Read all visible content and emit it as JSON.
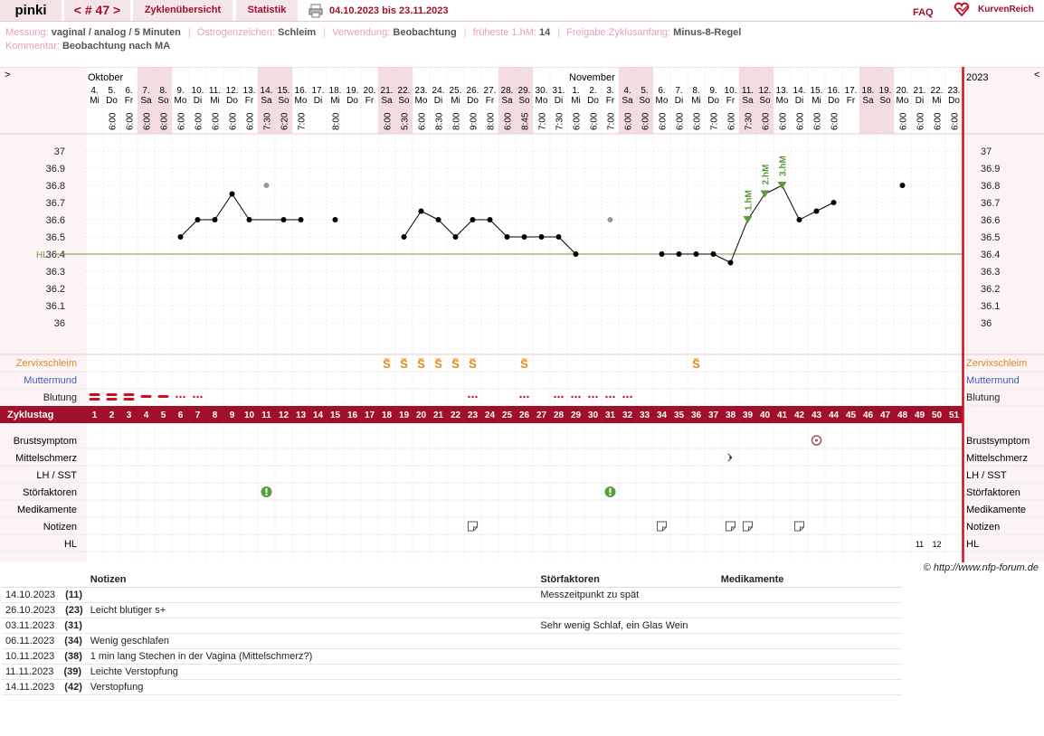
{
  "header": {
    "user": "pinki",
    "cycle_nav": "< # 47 >",
    "tab_overview": "Zyklenübersicht",
    "tab_stats": "Statistik",
    "print_icon": "printer-icon",
    "date_range": "04.10.2023 bis 23.11.2023",
    "faq": "FAQ",
    "logo_text": "KurvenReich"
  },
  "info": {
    "messung_label": "Messung:",
    "messung": "vaginal / analog / 5 Minuten",
    "oestrogen_label": "Östrogenzeichen:",
    "oestrogen": "Schleim",
    "verwendung_label": "Verwendung:",
    "verwendung": "Beobachtung",
    "frueh_label": "früheste 1.hM:",
    "frueh": "14",
    "freigabe_label": "Freigabe Zyklusanfang:",
    "freigabe": "Minus-8-Regel",
    "kommentar_label": "Kommentar:",
    "kommentar": "Beobachtung nach MA"
  },
  "chart_data": {
    "type": "line",
    "corner_left": ">",
    "corner_right": "<",
    "year": "2023",
    "months": [
      {
        "label": "Oktober",
        "day": 1
      },
      {
        "label": "November",
        "day": 29
      }
    ],
    "days": [
      "4.",
      "5.",
      "6.",
      "7.",
      "8.",
      "9.",
      "10.",
      "11.",
      "12.",
      "13.",
      "14.",
      "15.",
      "16.",
      "17.",
      "18.",
      "19.",
      "20.",
      "21.",
      "22.",
      "23.",
      "24.",
      "25.",
      "26.",
      "27.",
      "28.",
      "29.",
      "30.",
      "31.",
      "1.",
      "2.",
      "3.",
      "4.",
      "5.",
      "6.",
      "7.",
      "8.",
      "9.",
      "10.",
      "11.",
      "12.",
      "13.",
      "14.",
      "15.",
      "16.",
      "17.",
      "18.",
      "19.",
      "20.",
      "21.",
      "22.",
      "23."
    ],
    "weekdays": [
      "Mi",
      "Do",
      "Fr",
      "Sa",
      "So",
      "Mo",
      "Di",
      "Mi",
      "Do",
      "Fr",
      "Sa",
      "So",
      "Mo",
      "Di",
      "Mi",
      "Do",
      "Fr",
      "Sa",
      "So",
      "Mo",
      "Di",
      "Mi",
      "Do",
      "Fr",
      "Sa",
      "So",
      "Mo",
      "Di",
      "Mi",
      "Do",
      "Fr",
      "Sa",
      "So",
      "Mo",
      "Di",
      "Mi",
      "Do",
      "Fr",
      "Sa",
      "So",
      "Mo",
      "Di",
      "Mi",
      "Do",
      "Fr",
      "Sa",
      "So",
      "Mo",
      "Di",
      "Mi",
      "Do"
    ],
    "times": [
      "",
      "6:00",
      "6:00",
      "6:00",
      "6:00",
      "6:00",
      "6:00",
      "6:00",
      "6:00",
      "6:00",
      "7:30",
      "6:20",
      "7:00",
      "",
      "8:00",
      "",
      "",
      "6:00",
      "5:30",
      "6:00",
      "8:30",
      "8:00",
      "9:00",
      "8:00",
      "6:00",
      "8:45",
      "7:00",
      "7:30",
      "6:00",
      "6:00",
      "7:00",
      "6:00",
      "6:00",
      "6:00",
      "6:00",
      "6:00",
      "7:00",
      "6:00",
      "7:30",
      "6:00",
      "6:00",
      "6:00",
      "6:00",
      "6:00",
      "",
      "",
      "",
      "6:00",
      "6:00",
      "6:00",
      "6:00"
    ],
    "y_ticks": [
      "37",
      "36.9",
      "36.8",
      "36.7",
      "36.6",
      "36.5",
      "36.4",
      "36.3",
      "36.2",
      "36.1",
      "36"
    ],
    "ylim": [
      36,
      37
    ],
    "hl_label": "HL",
    "hl_value": 36.4,
    "temps": [
      null,
      null,
      null,
      null,
      null,
      36.5,
      36.6,
      36.6,
      36.75,
      36.6,
      36.8,
      36.6,
      36.6,
      null,
      36.6,
      null,
      null,
      null,
      36.5,
      36.65,
      36.6,
      36.5,
      36.6,
      36.6,
      36.5,
      36.5,
      36.5,
      36.5,
      36.4,
      null,
      36.6,
      null,
      null,
      36.4,
      36.4,
      36.4,
      36.4,
      36.35,
      36.6,
      36.75,
      36.8,
      36.6,
      36.65,
      36.7,
      null,
      null,
      null,
      36.8,
      null,
      null,
      null
    ],
    "excluded_days": [
      11,
      31
    ],
    "hm_labels": [
      {
        "day": 39,
        "label": "1.hM"
      },
      {
        "day": 40,
        "label": "2.hM"
      },
      {
        "day": 41,
        "label": "3.hM"
      }
    ],
    "row_labels": {
      "zervix": "Zervixschleim",
      "muttermund": "Muttermund",
      "blutung": "Blutung",
      "zyklustag": "Zyklustag",
      "brust": "Brustsymptom",
      "mittel": "Mittelschmerz",
      "lh": "LH / SST",
      "stoer": "Störfaktoren",
      "medi": "Medikamente",
      "notizen": "Notizen",
      "hl": "HL"
    },
    "zervix_symbol": "S",
    "zervix_days": [
      18,
      19,
      20,
      21,
      22,
      23,
      26,
      36
    ],
    "bleeding": {
      "strong": [
        1,
        2,
        3
      ],
      "medium": [
        4,
        5
      ],
      "spotting": [
        6,
        7,
        23,
        26,
        28,
        29,
        30,
        31,
        32
      ]
    },
    "cycle_days": [
      "1",
      "2",
      "3",
      "4",
      "5",
      "6",
      "7",
      "8",
      "9",
      "10",
      "11",
      "12",
      "13",
      "14",
      "15",
      "16",
      "17",
      "18",
      "19",
      "20",
      "21",
      "22",
      "23",
      "24",
      "25",
      "26",
      "27",
      "28",
      "29",
      "30",
      "31",
      "32",
      "33",
      "34",
      "35",
      "36",
      "37",
      "38",
      "39",
      "40",
      "41",
      "42",
      "43",
      "44",
      "45",
      "46",
      "47",
      "48",
      "49",
      "50",
      "51"
    ],
    "brust_days": [
      43
    ],
    "mittel_days": [
      38
    ],
    "stoer_days": [
      11,
      31
    ],
    "notiz_days": [
      23,
      34,
      38,
      39,
      42
    ],
    "hl_row": [
      {
        "day": 49,
        "label": "11"
      },
      {
        "day": 50,
        "label": "12"
      }
    ],
    "weekend_days": [
      4,
      5,
      11,
      12,
      18,
      19,
      25,
      26,
      32,
      33,
      39,
      40,
      46,
      47
    ],
    "hm_markers": [
      39,
      40,
      41
    ]
  },
  "copyright": "© http://www.nfp-forum.de",
  "notes_table": {
    "headers": [
      "",
      "Notizen",
      "Störfaktoren",
      "Medikamente"
    ],
    "rows": [
      {
        "date": "14.10.2023",
        "day": "(11)",
        "note": "",
        "stoer": "Messzeitpunkt zu spät",
        "medi": ""
      },
      {
        "date": "26.10.2023",
        "day": "(23)",
        "note": "Leicht blutiger s+",
        "stoer": "",
        "medi": ""
      },
      {
        "date": "03.11.2023",
        "day": "(31)",
        "note": "",
        "stoer": "Sehr wenig Schlaf, ein Glas Wein",
        "medi": ""
      },
      {
        "date": "06.11.2023",
        "day": "(34)",
        "note": "Wenig geschlafen",
        "stoer": "",
        "medi": ""
      },
      {
        "date": "10.11.2023",
        "day": "(38)",
        "note": "1 min lang Stechen in der Vagina (Mittelschmerz?)",
        "stoer": "",
        "medi": ""
      },
      {
        "date": "11.11.2023",
        "day": "(39)",
        "note": "Leichte Verstopfung",
        "stoer": "",
        "medi": ""
      },
      {
        "date": "14.11.2023",
        "day": "(42)",
        "note": "Verstopfung",
        "stoer": "",
        "medi": ""
      }
    ]
  }
}
